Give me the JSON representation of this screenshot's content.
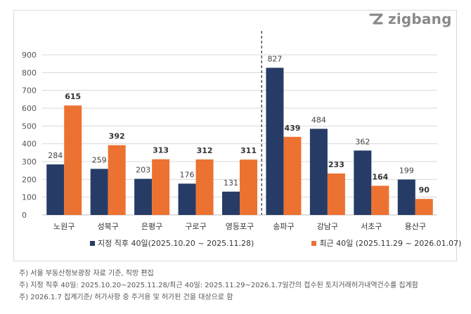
{
  "logo": {
    "text": "zigbang"
  },
  "colors": {
    "series1": "#263c66",
    "series2": "#ec7232",
    "grid": "#d9d9d9",
    "divider": "#555555"
  },
  "chart_data": {
    "type": "bar",
    "categories": [
      "노원구",
      "성북구",
      "은평구",
      "구로구",
      "영등포구",
      "송파구",
      "강남구",
      "서초구",
      "용산구"
    ],
    "series": [
      {
        "name": "지정 직후 40일(2025.10.20 ~ 2025.11.28)",
        "values": [
          284,
          259,
          203,
          176,
          131,
          827,
          484,
          362,
          199
        ]
      },
      {
        "name": "최근 40일 (2025.11.29 ~ 2026.01.07)",
        "values": [
          615,
          392,
          313,
          312,
          311,
          439,
          233,
          164,
          90
        ]
      }
    ],
    "yticks": [
      0,
      100,
      200,
      300,
      400,
      500,
      600,
      700,
      800,
      900
    ],
    "ylim": [
      0,
      900
    ],
    "divider_after_category": 4,
    "grid": true,
    "legend_position": "bottom"
  },
  "legend": {
    "item1": "지정 직후 40일(2025.10.20 ~ 2025.11.28)",
    "item2": "최근 40일 (2025.11.29 ~ 2026.01.07)"
  },
  "notes": [
    "주) 서울 부동산정보광장 자료 기준, 직방 편집",
    "주) 지정 직후 40일: 2025.10.20~2025.11.28/최근 40일: 2025.11.29~2026.1.7일간의 접수된 토지거래허가내역건수를 집계함",
    "주) 2026.1.7 집계기준/ 허가사항 중 주거용 및 허가된 건을 대상으로 함"
  ]
}
